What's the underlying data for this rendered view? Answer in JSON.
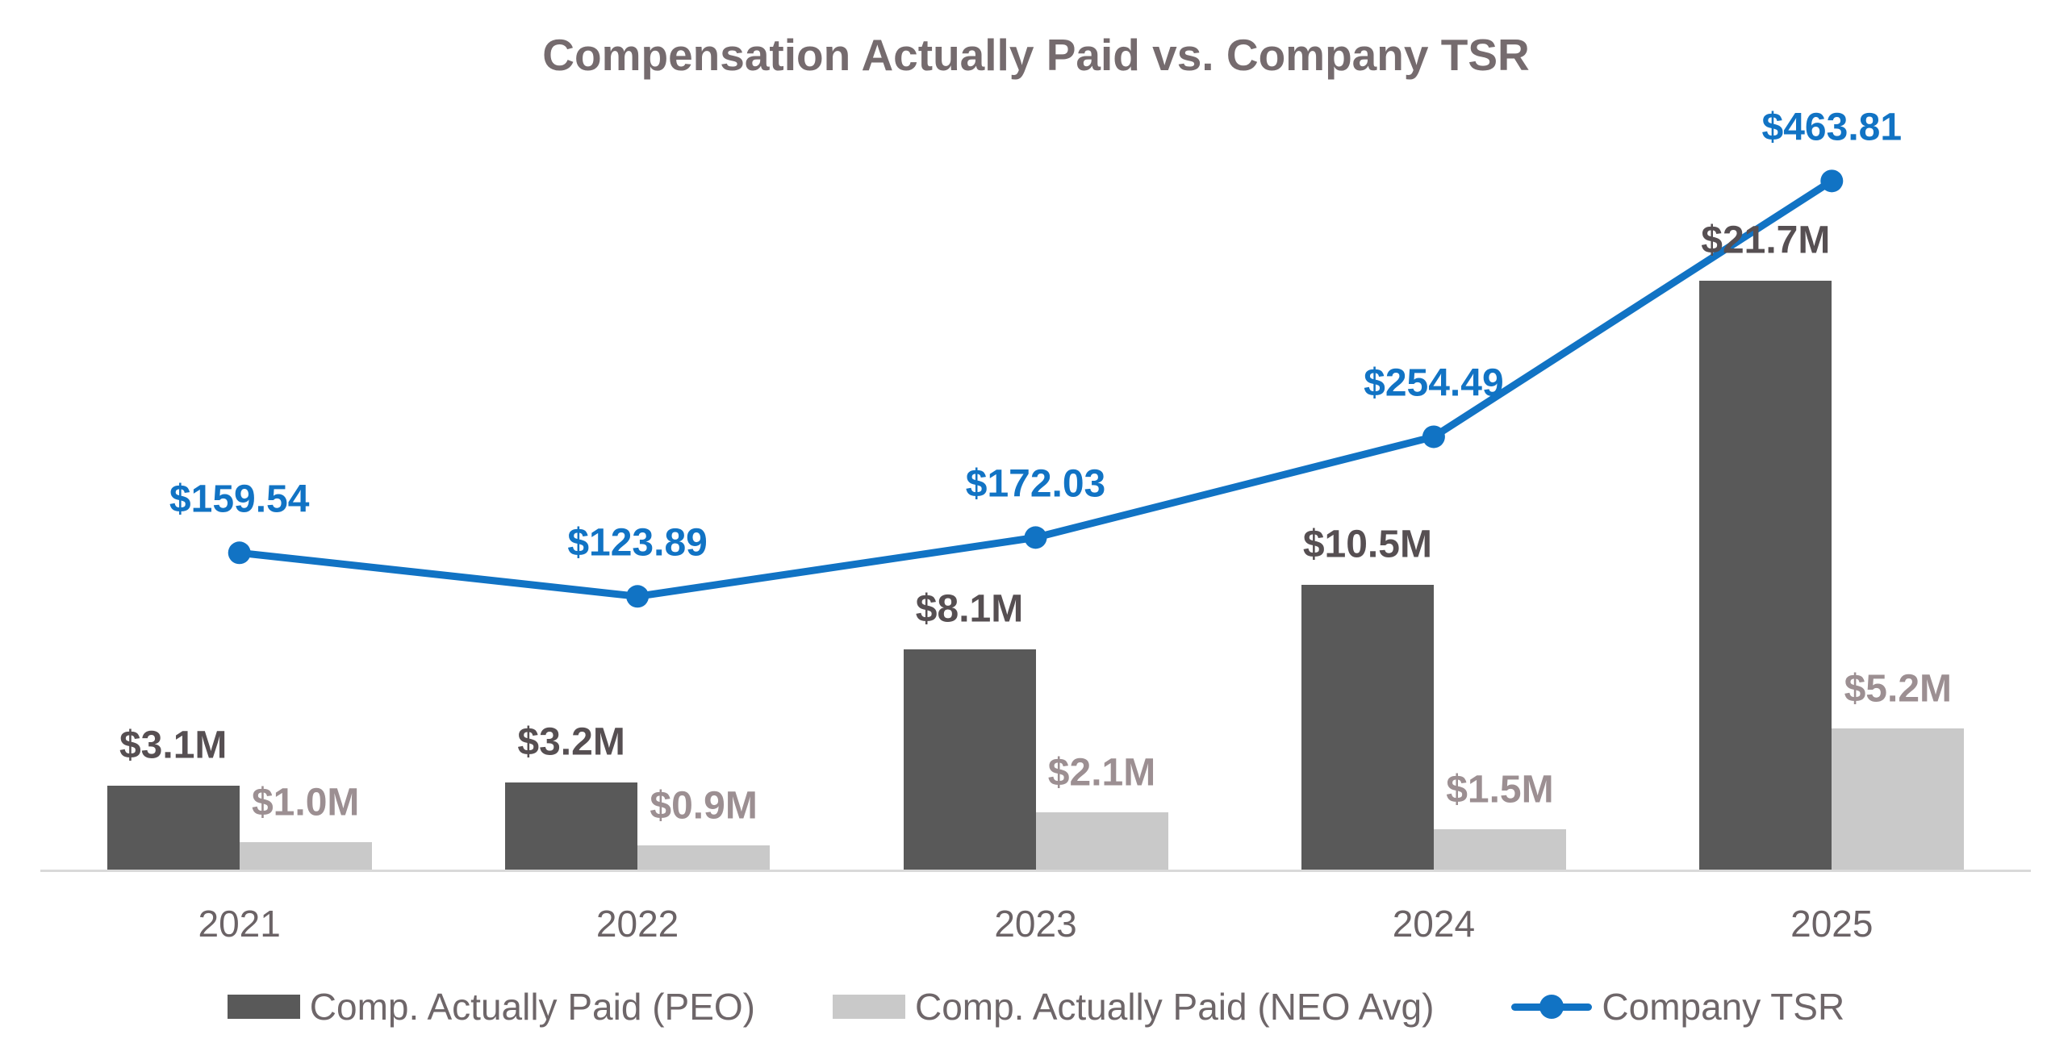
{
  "title": "Compensation Actually Paid vs. Company TSR",
  "chart_data": {
    "type": "bar",
    "subtype": "clustered-bar-with-line-combo",
    "categories": [
      "2021",
      "2022",
      "2023",
      "2024",
      "2025"
    ],
    "series": [
      {
        "name": "Comp. Actually Paid (PEO)",
        "type": "bar",
        "unit": "USD millions",
        "values": [
          3.1,
          3.2,
          8.1,
          10.5,
          21.7
        ],
        "labels": [
          "$3.1M",
          "$3.2M",
          "$8.1M",
          "$10.5M",
          "$21.7M"
        ],
        "color": "#595959",
        "label_color": "#564F52"
      },
      {
        "name": "Comp. Actually Paid (NEO Avg)",
        "type": "bar",
        "unit": "USD millions",
        "values": [
          1.0,
          0.9,
          2.1,
          1.5,
          5.2
        ],
        "labels": [
          "$1.0M",
          "$0.9M",
          "$2.1M",
          "$1.5M",
          "$5.2M"
        ],
        "color": "#C9C9C9",
        "label_color": "#9C8F92"
      },
      {
        "name": "Company TSR",
        "type": "line",
        "unit": "USD",
        "values": [
          159.54,
          123.89,
          172.03,
          254.49,
          463.81
        ],
        "labels": [
          "$159.54",
          "$123.89",
          "$172.03",
          "$254.49",
          "$463.81"
        ],
        "color": "#1173C4",
        "label_color": "#1173C4"
      }
    ],
    "title": "Compensation Actually Paid vs. Company TSR",
    "xlabel": "",
    "ylabel": "",
    "legend_position": "bottom",
    "grid": false,
    "axis_lines": "baseline-only",
    "baseline_color": "#D9D9D9",
    "title_color": "#756B6E",
    "tick_label_color": "#6B6366",
    "legend_text_color": "#6E6669",
    "background_color": "#FFFFFF"
  }
}
